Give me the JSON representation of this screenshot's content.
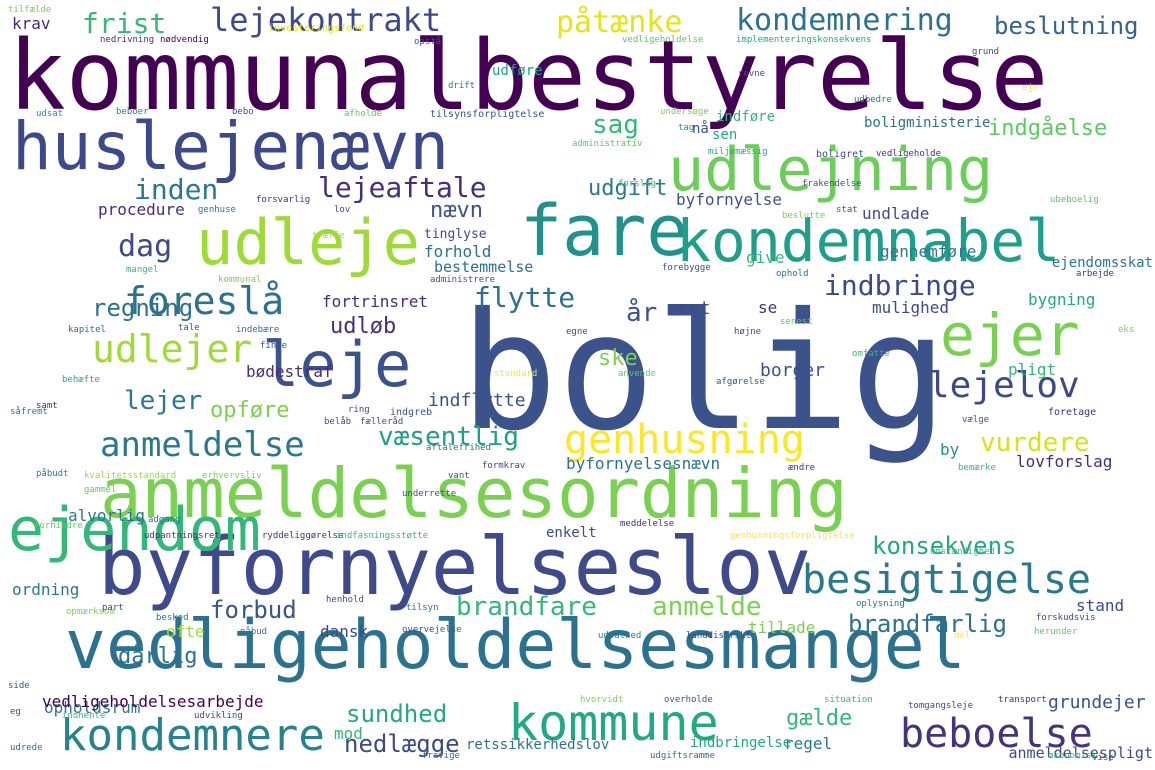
{
  "words": [
    {
      "text": "kommunalbestyrelse",
      "color": "#440154"
    },
    {
      "text": "bolig",
      "color": "#3b528b"
    },
    {
      "text": "anmeldelsesordning",
      "color": "#7ad151"
    },
    {
      "text": "vedligeholdelsesmangel",
      "color": "#2c728e"
    },
    {
      "text": "byfornyelseslov",
      "color": "#3e4a89"
    },
    {
      "text": "huslejenævn",
      "color": "#3e4989"
    },
    {
      "text": "udlejning",
      "color": "#6ccd5a"
    },
    {
      "text": "fare",
      "color": "#21918c"
    },
    {
      "text": "udleje",
      "color": "#a0da39"
    },
    {
      "text": "kondemnabel",
      "color": "#1f9e89"
    },
    {
      "text": "ejendom",
      "color": "#35b779"
    },
    {
      "text": "leje",
      "color": "#3b528b"
    },
    {
      "text": "ejer",
      "color": "#7ad151"
    },
    {
      "text": "kommune",
      "color": "#22a884"
    },
    {
      "text": "kondemnere",
      "color": "#26828e"
    },
    {
      "text": "genhusning",
      "color": "#fde725"
    },
    {
      "text": "besigtigelse",
      "color": "#2a788e"
    },
    {
      "text": "beboelse",
      "color": "#46327e"
    },
    {
      "text": "anmeldelse",
      "color": "#2a788e"
    },
    {
      "text": "lejelov",
      "color": "#3e4989"
    },
    {
      "text": "udlejer",
      "color": "#a0da39"
    },
    {
      "text": "foreslå",
      "color": "#2c728e"
    },
    {
      "text": "lejekontrakt",
      "color": "#3e4a89"
    },
    {
      "text": "kondemnering",
      "color": "#2c728e"
    },
    {
      "text": "påtænke",
      "color": "#e5e419"
    },
    {
      "text": "beslutning",
      "color": "#33638d"
    },
    {
      "text": "frist",
      "color": "#35b779"
    },
    {
      "text": "krav",
      "color": "#482878"
    },
    {
      "text": "inden",
      "color": "#2a788e"
    },
    {
      "text": "lejeaftale",
      "color": "#472d7b"
    },
    {
      "text": "udgift",
      "color": "#2a788e"
    },
    {
      "text": "sag",
      "color": "#35b779"
    },
    {
      "text": "indgåelse",
      "color": "#5ec962"
    },
    {
      "text": "dag",
      "color": "#3e4a89"
    },
    {
      "text": "regning",
      "color": "#2c728e"
    },
    {
      "text": "nævn",
      "color": "#3b528b"
    },
    {
      "text": "flytte",
      "color": "#2c728e"
    },
    {
      "text": "indbringe",
      "color": "#3e4989"
    },
    {
      "text": "år",
      "color": "#3b528b"
    },
    {
      "text": "udløb",
      "color": "#472d7b"
    },
    {
      "text": "lejer",
      "color": "#2a788e"
    },
    {
      "text": "opføre",
      "color": "#7ad151"
    },
    {
      "text": "væsentlig",
      "color": "#1f9e89"
    },
    {
      "text": "vurdere",
      "color": "#d8e219"
    },
    {
      "text": "konsekvens",
      "color": "#22a884"
    },
    {
      "text": "brandfare",
      "color": "#35b779"
    },
    {
      "text": "anmelde",
      "color": "#7ad151"
    },
    {
      "text": "brandfarlig",
      "color": "#2c728e"
    },
    {
      "text": "forbud",
      "color": "#3b528b"
    },
    {
      "text": "dårlig",
      "color": "#2c728e"
    },
    {
      "text": "sundhed",
      "color": "#22a884"
    },
    {
      "text": "nedlægge",
      "color": "#3e4989"
    },
    {
      "text": "gælde",
      "color": "#35b779"
    },
    {
      "text": "grundejer",
      "color": "#3b528b"
    },
    {
      "text": "procedure",
      "color": "#472d7b"
    },
    {
      "text": "byfornyelse",
      "color": "#3b528b"
    },
    {
      "text": "undlade",
      "color": "#3e4a89"
    },
    {
      "text": "forhold",
      "color": "#2c728e"
    },
    {
      "text": "bestemmelse",
      "color": "#2c728e"
    },
    {
      "text": "give",
      "color": "#35b779"
    },
    {
      "text": "gennemføre",
      "color": "#2a788e"
    },
    {
      "text": "fortrinsret",
      "color": "#472d7b"
    },
    {
      "text": "ske",
      "color": "#7ad151"
    },
    {
      "text": "ret",
      "color": "#3e4989"
    },
    {
      "text": "mulighed",
      "color": "#3e4a89"
    },
    {
      "text": "bygning",
      "color": "#22a884"
    },
    {
      "text": "indflytte",
      "color": "#3b528b"
    },
    {
      "text": "se",
      "color": "#46327e"
    },
    {
      "text": "borger",
      "color": "#3b528b"
    },
    {
      "text": "pligt",
      "color": "#35b779"
    },
    {
      "text": "by",
      "color": "#21918c"
    },
    {
      "text": "bødestraf",
      "color": "#472d7b"
    },
    {
      "text": "alvorlig",
      "color": "#2a788e"
    },
    {
      "text": "byfornyelsesnævn",
      "color": "#2c728e"
    },
    {
      "text": "lovforslag",
      "color": "#472d7b"
    },
    {
      "text": "ordning",
      "color": "#2a788e"
    },
    {
      "text": "enkelt",
      "color": "#3e4989"
    },
    {
      "text": "stand",
      "color": "#3e4a89"
    },
    {
      "text": "tillade",
      "color": "#7ad151"
    },
    {
      "text": "ofte",
      "color": "#a0da39"
    },
    {
      "text": "dansk",
      "color": "#3e4989"
    },
    {
      "text": "opholdsrum",
      "color": "#2a788e"
    },
    {
      "text": "mod",
      "color": "#35b779"
    },
    {
      "text": "regel",
      "color": "#2a788e"
    },
    {
      "text": "vedligeholdelsesarbejde",
      "color": "#440154"
    },
    {
      "text": "retssikkerhedslov",
      "color": "#2c728e"
    },
    {
      "text": "indbringelse",
      "color": "#22a884"
    },
    {
      "text": "anmeldelsespligt",
      "color": "#3e4989"
    },
    {
      "text": "bolig­ministerie",
      "color": "#2c728e"
    },
    {
      "text": "indføre",
      "color": "#35b779"
    },
    {
      "text": "sen",
      "color": "#22a884"
    },
    {
      "text": "udføre",
      "color": "#1f9e89"
    },
    {
      "text": "nå",
      "color": "#3b528b"
    },
    {
      "text": "ejendomsskat",
      "color": "#2a788e"
    },
    {
      "text": "tinglyse",
      "color": "#3e4a89"
    },
    {
      "text": "investeringsfond",
      "color": "#e5e419"
    },
    {
      "text": "nedrivning",
      "color": "#472d7b"
    },
    {
      "text": "nødvendig",
      "color": "#440154"
    },
    {
      "text": "opstå",
      "color": "#3b528b"
    },
    {
      "text": "vedligeholdelse",
      "color": "#5ec962"
    },
    {
      "text": "implementeringskonsekvens",
      "color": "#22a884"
    },
    {
      "text": "grund",
      "color": "#3e4989"
    },
    {
      "text": "tilfælde",
      "color": "#7ad151"
    },
    {
      "text": "drift",
      "color": "#2a788e"
    },
    {
      "text": "revne",
      "color": "#3e4989"
    },
    {
      "text": "udsat",
      "color": "#21918c"
    },
    {
      "text": "beboer",
      "color": "#2a788e"
    },
    {
      "text": "bebo",
      "color": "#3b528b"
    },
    {
      "text": "afholde",
      "color": "#5ec962"
    },
    {
      "text": "tilsynsforpligtelse",
      "color": "#3b528b"
    },
    {
      "text": "udbedre",
      "color": "#2c728e"
    },
    {
      "text": "eje",
      "color": "#fde725"
    },
    {
      "text": "administrativ",
      "color": "#5ec962"
    },
    {
      "text": "undersøge",
      "color": "#7ad151"
    },
    {
      "text": "tag",
      "color": "#21918c"
    },
    {
      "text": "miljømæssig",
      "color": "#22a884"
    },
    {
      "text": "boligret",
      "color": "#3e4989"
    },
    {
      "text": "vedligeholde",
      "color": "#472d7b"
    },
    {
      "text": "frakendelse",
      "color": "#3b528b"
    },
    {
      "text": "forslag",
      "color": "#35b779"
    },
    {
      "text": "ubeboelig",
      "color": "#5ec962"
    },
    {
      "text": "genhuse",
      "color": "#2c728e"
    },
    {
      "text": "forsvarlig",
      "color": "#472d7b"
    },
    {
      "text": "lov",
      "color": "#3e4989"
    },
    {
      "text": "beslutte",
      "color": "#7ad151"
    },
    {
      "text": "stat",
      "color": "#3b528b"
    },
    {
      "text": "træffe",
      "color": "#a0da39"
    },
    {
      "text": "mangel",
      "color": "#35b779"
    },
    {
      "text": "kommunal",
      "color": "#7ad151"
    },
    {
      "text": "administrere",
      "color": "#3b528b"
    },
    {
      "text": "forebygge",
      "color": "#3b528b"
    },
    {
      "text": "ophold",
      "color": "#2c728e"
    },
    {
      "text": "arbejde",
      "color": "#472d7b"
    },
    {
      "text": "kapitel",
      "color": "#2c728e"
    },
    {
      "text": "tale",
      "color": "#3b528b"
    },
    {
      "text": "indebære",
      "color": "#2c728e"
    },
    {
      "text": "egne",
      "color": "#3e4989"
    },
    {
      "text": "højne",
      "color": "#3e4989"
    },
    {
      "text": "senest",
      "color": "#5ec962"
    },
    {
      "text": "eks",
      "color": "#7ad151"
    },
    {
      "text": "finde",
      "color": "#3b528b"
    },
    {
      "text": "behæfte",
      "color": "#22a884"
    },
    {
      "text": "standard",
      "color": "#fde725"
    },
    {
      "text": "anvende",
      "color": "#5ec962"
    },
    {
      "text": "afgørelse",
      "color": "#3b528b"
    },
    {
      "text": "omfatte",
      "color": "#35b779"
    },
    {
      "text": "ring",
      "color": "#3e4989"
    },
    {
      "text": "såfremt",
      "color": "#2a788e"
    },
    {
      "text": "samt",
      "color": "#472d7b"
    },
    {
      "text": "belåb",
      "color": "#3e4989"
    },
    {
      "text": "fælleråd",
      "color": "#3e4989"
    },
    {
      "text": "indgreb",
      "color": "#3b528b"
    },
    {
      "text": "vælge",
      "color": "#3b528b"
    },
    {
      "text": "foretage",
      "color": "#472d7b"
    },
    {
      "text": "aftalefrihed",
      "color": "#2c728e"
    },
    {
      "text": "påbudt",
      "color": "#2a788e"
    },
    {
      "text": "kvalitetsstandard",
      "color": "#a0da39"
    },
    {
      "text": "erhvervsliv",
      "color": "#7ad151"
    },
    {
      "text": "underrette",
      "color": "#3b528b"
    },
    {
      "text": "formkrav",
      "color": "#3e4989"
    },
    {
      "text": "vant",
      "color": "#3e4a89"
    },
    {
      "text": "ændre",
      "color": "#472d7b"
    },
    {
      "text": "bemærke",
      "color": "#35b779"
    },
    {
      "text": "gammel",
      "color": "#5ec962"
    },
    {
      "text": "adgang",
      "color": "#2a788e"
    },
    {
      "text": "forhindre",
      "color": "#5ec962"
    },
    {
      "text": "udpantningsret",
      "color": "#472d7b"
    },
    {
      "text": "ryddeliggørelse",
      "color": "#472d7b"
    },
    {
      "text": "indfasningsstøtte",
      "color": "#35b779"
    },
    {
      "text": "meddelelse",
      "color": "#472d7b"
    },
    {
      "text": "genhusningsforpligtelse",
      "color": "#fde725"
    },
    {
      "text": "omstændighed",
      "color": "#35b779"
    },
    {
      "text": "opmærksom",
      "color": "#7ad151"
    },
    {
      "text": "part",
      "color": "#3e4989"
    },
    {
      "text": "besked",
      "color": "#2c728e"
    },
    {
      "text": "henhold",
      "color": "#3b528b"
    },
    {
      "text": "tilsyn",
      "color": "#2c728e"
    },
    {
      "text": "oplysning",
      "color": "#2c728e"
    },
    {
      "text": "forskudsvis",
      "color": "#3e4989"
    },
    {
      "text": "påbud",
      "color": "#2a788e"
    },
    {
      "text": "overvejelse",
      "color": "#3b528b"
    },
    {
      "text": "udsathed",
      "color": "#2a788e"
    },
    {
      "text": "landdistrikt",
      "color": "#3e4989"
    },
    {
      "text": "del",
      "color": "#fde725"
    },
    {
      "text": "herunder",
      "color": "#5ec962"
    },
    {
      "text": "side",
      "color": "#3b528b"
    },
    {
      "text": "eg",
      "color": "#3e4989"
    },
    {
      "text": "indhente",
      "color": "#35b779"
    },
    {
      "text": "udvikling",
      "color": "#3e4a89"
    },
    {
      "text": "hvorvidt",
      "color": "#7ad151"
    },
    {
      "text": "overholde",
      "color": "#3b528b"
    },
    {
      "text": "situation",
      "color": "#35b779"
    },
    {
      "text": "tomgangsleje",
      "color": "#3e4a89"
    },
    {
      "text": "transport",
      "color": "#472d7b"
    },
    {
      "text": "udrede",
      "color": "#2c728e"
    },
    {
      "text": "fravige",
      "color": "#2c728e"
    },
    {
      "text": "udgiftsramme",
      "color": "#2c728e"
    },
    {
      "text": "økonomisk",
      "color": "#35b779"
    },
    {
      "text": "vise",
      "color": "#3b528b"
    }
  ]
}
